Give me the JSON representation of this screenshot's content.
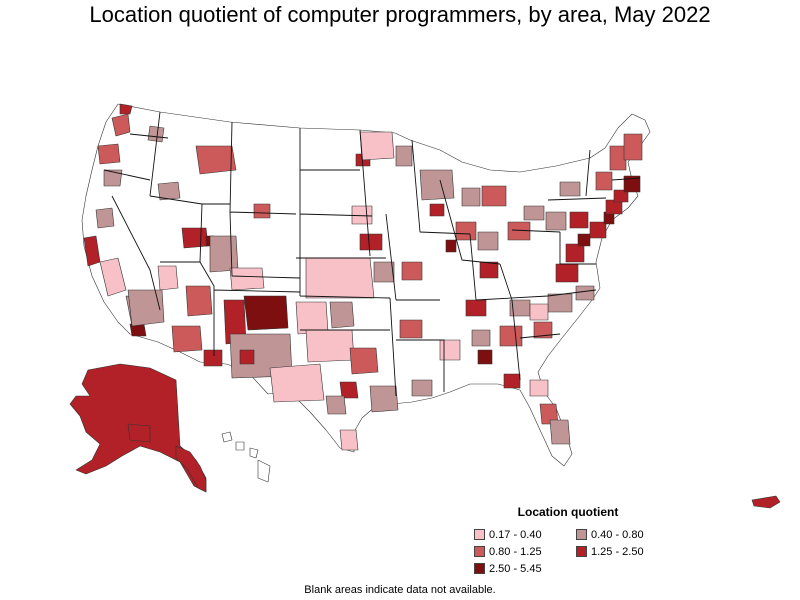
{
  "title": "Location quotient of computer programmers, by area, May 2022",
  "legend": {
    "title": "Location quotient",
    "items": [
      {
        "label": "0.17 - 0.40",
        "color": "#f7c1c7"
      },
      {
        "label": "0.40 - 0.80",
        "color": "#c09595"
      },
      {
        "label": "0.80 - 1.25",
        "color": "#cc5a5a"
      },
      {
        "label": "1.25 - 2.50",
        "color": "#b22128"
      },
      {
        "label": "2.50 - 5.45",
        "color": "#7d0f10"
      }
    ]
  },
  "footnote": "Blank areas indicate data not available.",
  "colors": {
    "no_data": "#ffffff",
    "border": "#333333"
  }
}
